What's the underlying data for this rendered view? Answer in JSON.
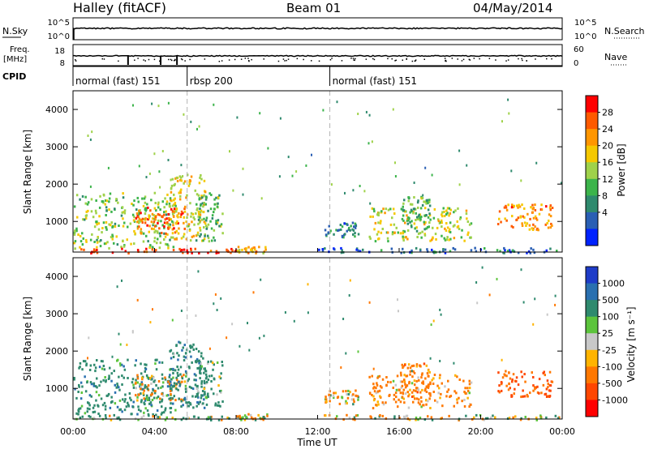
{
  "header": {
    "radar": "Halley (fitACF)",
    "beam": "Beam 01",
    "date": "04/May/2014"
  },
  "noise_panel": {
    "left_label": "N.Sky",
    "right_label": "N.Search",
    "left_ticks": [
      "10^5",
      "10^0"
    ],
    "right_ticks": [
      "10^5",
      "10^0"
    ]
  },
  "freq_panel": {
    "left_label": "Freq.",
    "left_unit": "[MHz]",
    "right_label": "Nave",
    "left_ticks": [
      "18",
      "8"
    ],
    "right_ticks": [
      "60",
      "0"
    ]
  },
  "cpid": {
    "label": "CPID",
    "segments": [
      {
        "label": "normal (fast) 151",
        "start_hour": 0
      },
      {
        "label": "rbsp 200",
        "start_hour": 5.6
      },
      {
        "label": "normal (fast) 151",
        "start_hour": 12.6
      }
    ]
  },
  "power_panel": {
    "ylabel": "Slant Range [km]",
    "colorbar_label": "Power [dB]",
    "colorbar_ticks": [
      "28",
      "24",
      "20",
      "16",
      "12",
      "8",
      "4"
    ],
    "colorbar_colors": [
      "#ff0000",
      "#ff5a00",
      "#ff9600",
      "#f5c800",
      "#9fd24a",
      "#3cb44b",
      "#2f8a6e",
      "#2a5fb4",
      "#0022ff"
    ]
  },
  "velocity_panel": {
    "ylabel": "Slant Range [km]",
    "colorbar_label": "Velocity [m s⁻¹]",
    "colorbar_ticks": [
      "1000",
      "500",
      "100",
      "25",
      "-25",
      "-100",
      "-500",
      "-1000"
    ],
    "colorbar_colors": [
      "#1e3cc8",
      "#2a70b0",
      "#2f8a6e",
      "#5cc43c",
      "#c8c8c8",
      "#ffb400",
      "#ff7800",
      "#ff4600",
      "#ff0000"
    ]
  },
  "x_axis": {
    "label": "Time UT",
    "ticks": [
      "00:00",
      "04:00",
      "08:00",
      "12:00",
      "16:00",
      "20:00",
      "00:00"
    ]
  },
  "y_ticks": [
    "4000",
    "3000",
    "2000",
    "1000"
  ],
  "chart_data": {
    "type": "heatmap",
    "title": "Halley (fitACF)  Beam 01  04/May/2014",
    "xlabel": "Time UT",
    "ylabel": "Slant Range [km]",
    "xlim_hours": [
      0,
      24
    ],
    "ylim_km": [
      180,
      4500
    ],
    "power_scale_db": [
      0,
      30
    ],
    "velocity_scale_ms": [
      -1000,
      1000
    ],
    "scatter_regions": [
      {
        "start_hour": 0.0,
        "end_hour": 5.0,
        "range_km": [
          300,
          1800
        ],
        "power_db": 14,
        "velocity_ms": 300
      },
      {
        "start_hour": 3.0,
        "end_hour": 5.5,
        "range_km": [
          700,
          1400
        ],
        "power_db": 24,
        "velocity_ms": -100
      },
      {
        "start_hour": 4.7,
        "end_hour": 6.5,
        "range_km": [
          500,
          2300
        ],
        "power_db": 18,
        "velocity_ms": 400
      },
      {
        "start_hour": 6.0,
        "end_hour": 7.3,
        "range_km": [
          500,
          1800
        ],
        "power_db": 12,
        "velocity_ms": 200
      },
      {
        "start_hour": 0.0,
        "end_hour": 8.0,
        "range_km": [
          180,
          300
        ],
        "power_db": 28,
        "velocity_ms": 50
      },
      {
        "start_hour": 8.0,
        "end_hour": 9.5,
        "range_km": [
          180,
          350
        ],
        "power_db": 20,
        "velocity_ms": -50
      },
      {
        "start_hour": 12.3,
        "end_hour": 14.0,
        "range_km": [
          600,
          1000
        ],
        "power_db": 8,
        "velocity_ms": -100
      },
      {
        "start_hour": 14.5,
        "end_hour": 19.5,
        "range_km": [
          500,
          1400
        ],
        "power_db": 16,
        "velocity_ms": -200
      },
      {
        "start_hour": 16.0,
        "end_hour": 17.5,
        "range_km": [
          700,
          1700
        ],
        "power_db": 12,
        "velocity_ms": -300
      },
      {
        "start_hour": 20.8,
        "end_hour": 23.5,
        "range_km": [
          800,
          1500
        ],
        "power_db": 22,
        "velocity_ms": -500
      },
      {
        "start_hour": 12.0,
        "end_hour": 24.0,
        "range_km": [
          180,
          320
        ],
        "power_db": 6,
        "velocity_ms": -50
      }
    ]
  }
}
